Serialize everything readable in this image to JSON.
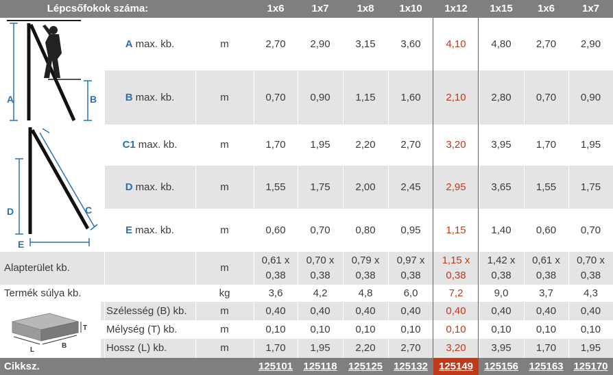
{
  "header": {
    "title": "Lépcsőfokok száma:",
    "columns": [
      "1x6",
      "1x7",
      "1x8",
      "1x10",
      "1x12",
      "1x15",
      "1x6",
      "1x7"
    ]
  },
  "highlight_color": "#c0391b",
  "header_color": "#7f7f7f",
  "stripe_color": "#e4e4e4",
  "accent_letter_color": "#2a6fb5",
  "diagram_labels": {
    "top": [
      "A",
      "B"
    ],
    "bottom": [
      "C",
      "D",
      "E"
    ],
    "box": [
      "T",
      "L",
      "B"
    ]
  },
  "rows": {
    "a": {
      "letter": "A",
      "label": "max. kb.",
      "unit": "m",
      "values": [
        "2,70",
        "2,90",
        "3,15",
        "3,60",
        "4,10",
        "4,80",
        "2,70",
        "2,90"
      ]
    },
    "b": {
      "letter": "B",
      "label": "max. kb.",
      "unit": "m",
      "values": [
        "0,70",
        "0,90",
        "1,15",
        "1,60",
        "2,10",
        "2,80",
        "0,70",
        "0,90"
      ]
    },
    "c1": {
      "letter": "C1",
      "label": "max. kb.",
      "unit": "m",
      "values": [
        "1,70",
        "1,95",
        "2,20",
        "2,70",
        "3,20",
        "3,95",
        "1,70",
        "1,95"
      ]
    },
    "d": {
      "letter": "D",
      "label": "max. kb.",
      "unit": "m",
      "values": [
        "1,55",
        "1,75",
        "2,00",
        "2,45",
        "2,95",
        "3,65",
        "1,55",
        "1,75"
      ]
    },
    "e": {
      "letter": "E",
      "label": "max. kb.",
      "unit": "m",
      "values": [
        "0,60",
        "0,70",
        "0,80",
        "0,95",
        "1,15",
        "1,40",
        "0,60",
        "0,70"
      ]
    },
    "area": {
      "label": "Alapterület kb.",
      "unit": "m",
      "values": [
        [
          "0,61 x",
          "0,38"
        ],
        [
          "0,70 x",
          "0,38"
        ],
        [
          "0,79 x",
          "0,38"
        ],
        [
          "0,97 x",
          "0,38"
        ],
        [
          "1,15 x",
          "0,38"
        ],
        [
          "1,42 x",
          "0,38"
        ],
        [
          "0,61 x",
          "0,38"
        ],
        [
          "0,70 x",
          "0,38"
        ]
      ]
    },
    "weight": {
      "label": "Termék súlya kb.",
      "unit": "kg",
      "values": [
        "3,6",
        "4,2",
        "4,8",
        "6,0",
        "7,2",
        "9,0",
        "3,7",
        "4,3"
      ]
    },
    "width": {
      "label": "Szélesség (B) kb.",
      "unit": "m",
      "values": [
        "0,40",
        "0,40",
        "0,40",
        "0,40",
        "0,40",
        "0,40",
        "0,40",
        "0,40"
      ]
    },
    "depth": {
      "label": "Mélység (T) kb.",
      "unit": "m",
      "values": [
        "0,10",
        "0,10",
        "0,10",
        "0,10",
        "0,10",
        "0,10",
        "0,10",
        "0,10"
      ]
    },
    "length": {
      "label": "Hossz (L) kb.",
      "unit": "m",
      "values": [
        "1,70",
        "1,95",
        "2,20",
        "2,70",
        "3,20",
        "3,95",
        "1,70",
        "1,95"
      ]
    }
  },
  "article": {
    "label": "Cikksz.",
    "codes": [
      "125101",
      "125118",
      "125125",
      "125132",
      "125149",
      "125156",
      "125163",
      "125170"
    ]
  }
}
